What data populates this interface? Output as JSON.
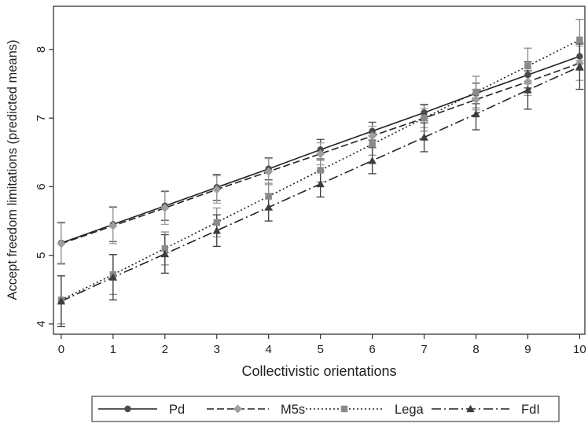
{
  "chart_data": {
    "type": "line",
    "title": "",
    "xlabel": "Collectivistic orientations",
    "ylabel": "Accept freedom limitations (predicted means)",
    "x": [
      0,
      1,
      2,
      3,
      4,
      5,
      6,
      7,
      8,
      9,
      10
    ],
    "xlim": [
      -0.15,
      10.1
    ],
    "ylim": [
      3.85,
      8.63
    ],
    "xticks": [
      0,
      1,
      2,
      3,
      4,
      5,
      6,
      7,
      8,
      9,
      10
    ],
    "yticks": [
      4,
      5,
      6,
      7,
      8
    ],
    "grid": false,
    "legend_position": "bottom",
    "series": [
      {
        "name": "Pd",
        "marker": "circle",
        "line_style": "solid",
        "color": "#4a4a4a",
        "values": [
          5.18,
          5.45,
          5.72,
          5.99,
          6.26,
          6.54,
          6.81,
          7.08,
          7.36,
          7.63,
          7.9
        ],
        "ci_low": [
          4.88,
          5.2,
          5.51,
          5.8,
          6.1,
          6.39,
          6.68,
          6.96,
          7.21,
          7.44,
          7.7
        ],
        "ci_high": [
          5.48,
          5.7,
          5.93,
          6.18,
          6.42,
          6.69,
          6.94,
          7.2,
          7.51,
          7.82,
          8.1
        ]
      },
      {
        "name": "M5s",
        "marker": "diamond",
        "line_style": "dashed",
        "color": "#9e9e9e",
        "values": [
          5.17,
          5.43,
          5.69,
          5.96,
          6.22,
          6.48,
          6.74,
          7.0,
          7.27,
          7.53,
          7.8
        ],
        "ci_low": [
          4.87,
          5.17,
          5.45,
          5.76,
          6.03,
          6.32,
          6.6,
          6.86,
          7.12,
          7.33,
          7.55
        ],
        "ci_high": [
          5.47,
          5.71,
          5.94,
          6.16,
          6.41,
          6.64,
          6.88,
          7.14,
          7.42,
          7.73,
          8.05
        ]
      },
      {
        "name": "Lega",
        "marker": "square",
        "line_style": "dotted",
        "color": "#8a8a8a",
        "values": [
          4.35,
          4.72,
          5.1,
          5.48,
          5.86,
          6.24,
          6.62,
          7.0,
          7.38,
          7.76,
          8.14
        ],
        "ci_low": [
          4.0,
          4.43,
          4.86,
          5.27,
          5.67,
          6.07,
          6.46,
          6.81,
          7.15,
          7.5,
          7.84
        ],
        "ci_high": [
          4.7,
          5.01,
          5.34,
          5.69,
          6.05,
          6.41,
          6.78,
          7.19,
          7.61,
          8.02,
          8.44
        ]
      },
      {
        "name": "FdI",
        "marker": "triangle",
        "line_style": "dashdot",
        "color": "#3d3d3d",
        "values": [
          4.33,
          4.68,
          5.02,
          5.36,
          5.7,
          6.04,
          6.38,
          6.72,
          7.06,
          7.41,
          7.75
        ],
        "ci_low": [
          3.96,
          4.35,
          4.74,
          5.13,
          5.5,
          5.85,
          6.19,
          6.51,
          6.83,
          7.13,
          7.42
        ],
        "ci_high": [
          4.7,
          5.01,
          5.3,
          5.59,
          5.9,
          6.23,
          6.57,
          6.93,
          7.29,
          7.69,
          8.08
        ]
      }
    ]
  },
  "legend": {
    "items": [
      {
        "label": "Pd"
      },
      {
        "label": "M5s"
      },
      {
        "label": "Lega"
      },
      {
        "label": "FdI"
      }
    ]
  }
}
